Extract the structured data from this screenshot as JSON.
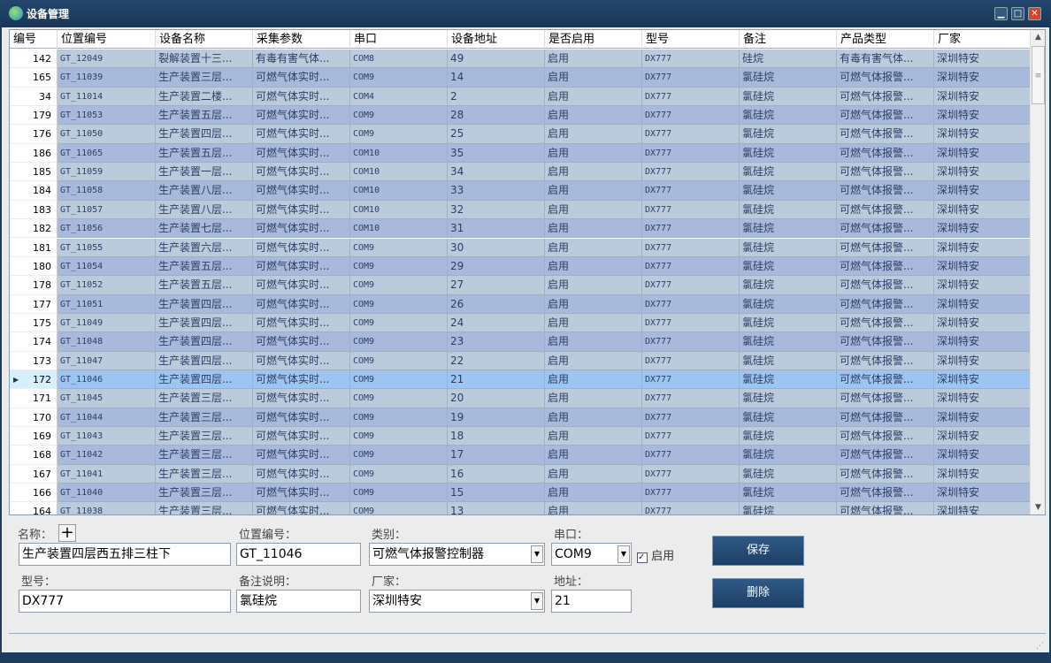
{
  "window": {
    "title": "设备管理",
    "minimize": "▁",
    "maximize": "□",
    "close": "✕"
  },
  "columns": [
    "编号",
    "位置编号",
    "设备名称",
    "采集参数",
    "串口",
    "设备地址",
    "是否启用",
    "型号",
    "备注",
    "产品类型",
    "厂家"
  ],
  "selected_row_id": "172",
  "rows": [
    [
      "142",
      "GT_12049",
      "裂解装置十三...",
      "有毒有害气体...",
      "COM8",
      "49",
      "启用",
      "DX777",
      "硅烷",
      "有毒有害气体...",
      "深圳特安"
    ],
    [
      "165",
      "GT_11039",
      "生产装置三层...",
      "可燃气体实时...",
      "COM9",
      "14",
      "启用",
      "DX777",
      "氯硅烷",
      "可燃气体报警...",
      "深圳特安"
    ],
    [
      "34",
      "GT_11014",
      "生产装置二楼...",
      "可燃气体实时...",
      "COM4",
      "2",
      "启用",
      "DX777",
      "氯硅烷",
      "可燃气体报警...",
      "深圳特安"
    ],
    [
      "179",
      "GT_11053",
      "生产装置五层...",
      "可燃气体实时...",
      "COM9",
      "28",
      "启用",
      "DX777",
      "氯硅烷",
      "可燃气体报警...",
      "深圳特安"
    ],
    [
      "176",
      "GT_11050",
      "生产装置四层...",
      "可燃气体实时...",
      "COM9",
      "25",
      "启用",
      "DX777",
      "氯硅烷",
      "可燃气体报警...",
      "深圳特安"
    ],
    [
      "186",
      "GT_11065",
      "生产装置五层...",
      "可燃气体实时...",
      "COM10",
      "35",
      "启用",
      "DX777",
      "氯硅烷",
      "可燃气体报警...",
      "深圳特安"
    ],
    [
      "185",
      "GT_11059",
      "生产装置一层...",
      "可燃气体实时...",
      "COM10",
      "34",
      "启用",
      "DX777",
      "氯硅烷",
      "可燃气体报警...",
      "深圳特安"
    ],
    [
      "184",
      "GT_11058",
      "生产装置八层...",
      "可燃气体实时...",
      "COM10",
      "33",
      "启用",
      "DX777",
      "氯硅烷",
      "可燃气体报警...",
      "深圳特安"
    ],
    [
      "183",
      "GT_11057",
      "生产装置八层...",
      "可燃气体实时...",
      "COM10",
      "32",
      "启用",
      "DX777",
      "氯硅烷",
      "可燃气体报警...",
      "深圳特安"
    ],
    [
      "182",
      "GT_11056",
      "生产装置七层...",
      "可燃气体实时...",
      "COM10",
      "31",
      "启用",
      "DX777",
      "氯硅烷",
      "可燃气体报警...",
      "深圳特安"
    ],
    [
      "181",
      "GT_11055",
      "生产装置六层...",
      "可燃气体实时...",
      "COM9",
      "30",
      "启用",
      "DX777",
      "氯硅烷",
      "可燃气体报警...",
      "深圳特安"
    ],
    [
      "180",
      "GT_11054",
      "生产装置五层...",
      "可燃气体实时...",
      "COM9",
      "29",
      "启用",
      "DX777",
      "氯硅烷",
      "可燃气体报警...",
      "深圳特安"
    ],
    [
      "178",
      "GT_11052",
      "生产装置五层...",
      "可燃气体实时...",
      "COM9",
      "27",
      "启用",
      "DX777",
      "氯硅烷",
      "可燃气体报警...",
      "深圳特安"
    ],
    [
      "177",
      "GT_11051",
      "生产装置四层...",
      "可燃气体实时...",
      "COM9",
      "26",
      "启用",
      "DX777",
      "氯硅烷",
      "可燃气体报警...",
      "深圳特安"
    ],
    [
      "175",
      "GT_11049",
      "生产装置四层...",
      "可燃气体实时...",
      "COM9",
      "24",
      "启用",
      "DX777",
      "氯硅烷",
      "可燃气体报警...",
      "深圳特安"
    ],
    [
      "174",
      "GT_11048",
      "生产装置四层...",
      "可燃气体实时...",
      "COM9",
      "23",
      "启用",
      "DX777",
      "氯硅烷",
      "可燃气体报警...",
      "深圳特安"
    ],
    [
      "173",
      "GT_11047",
      "生产装置四层...",
      "可燃气体实时...",
      "COM9",
      "22",
      "启用",
      "DX777",
      "氯硅烷",
      "可燃气体报警...",
      "深圳特安"
    ],
    [
      "172",
      "GT_11046",
      "生产装置四层...",
      "可燃气体实时...",
      "COM9",
      "21",
      "启用",
      "DX777",
      "氯硅烷",
      "可燃气体报警...",
      "深圳特安"
    ],
    [
      "171",
      "GT_11045",
      "生产装置三层...",
      "可燃气体实时...",
      "COM9",
      "20",
      "启用",
      "DX777",
      "氯硅烷",
      "可燃气体报警...",
      "深圳特安"
    ],
    [
      "170",
      "GT_11044",
      "生产装置三层...",
      "可燃气体实时...",
      "COM9",
      "19",
      "启用",
      "DX777",
      "氯硅烷",
      "可燃气体报警...",
      "深圳特安"
    ],
    [
      "169",
      "GT_11043",
      "生产装置三层...",
      "可燃气体实时...",
      "COM9",
      "18",
      "启用",
      "DX777",
      "氯硅烷",
      "可燃气体报警...",
      "深圳特安"
    ],
    [
      "168",
      "GT_11042",
      "生产装置三层...",
      "可燃气体实时...",
      "COM9",
      "17",
      "启用",
      "DX777",
      "氯硅烷",
      "可燃气体报警...",
      "深圳特安"
    ],
    [
      "167",
      "GT_11041",
      "生产装置三层...",
      "可燃气体实时...",
      "COM9",
      "16",
      "启用",
      "DX777",
      "氯硅烷",
      "可燃气体报警...",
      "深圳特安"
    ],
    [
      "166",
      "GT_11040",
      "生产装置三层...",
      "可燃气体实时...",
      "COM9",
      "15",
      "启用",
      "DX777",
      "氯硅烷",
      "可燃气体报警...",
      "深圳特安"
    ],
    [
      "164",
      "GT_11038",
      "生产装置三层...",
      "可燃气体实时...",
      "COM9",
      "13",
      "启用",
      "DX777",
      "氯硅烷",
      "可燃气体报警...",
      "深圳特安"
    ]
  ],
  "colors": {
    "row_light": "#bccbdc",
    "row_dark": "#a9b9db",
    "row_selected": "#9ec4f2",
    "titlebar": "#1d3c5e"
  },
  "form": {
    "name_label": "名称：",
    "add_label": "+",
    "name_value": "生产装置四层西五排三柱下",
    "location_label": "位置编号：",
    "location_value": "GT_11046",
    "category_label": "类别：",
    "category_value": "可燃气体报警控制器",
    "port_label": "串口：",
    "port_value": "COM9",
    "enabled_label": "启用",
    "enabled": true,
    "model_label": "型号：",
    "model_value": "DX777",
    "remark_label": "备注说明：",
    "remark_value": "氯硅烷",
    "vendor_label": "厂家：",
    "vendor_value": "深圳特安",
    "address_label": "地址：",
    "address_value": "21",
    "save_label": "保存",
    "delete_label": "删除"
  }
}
